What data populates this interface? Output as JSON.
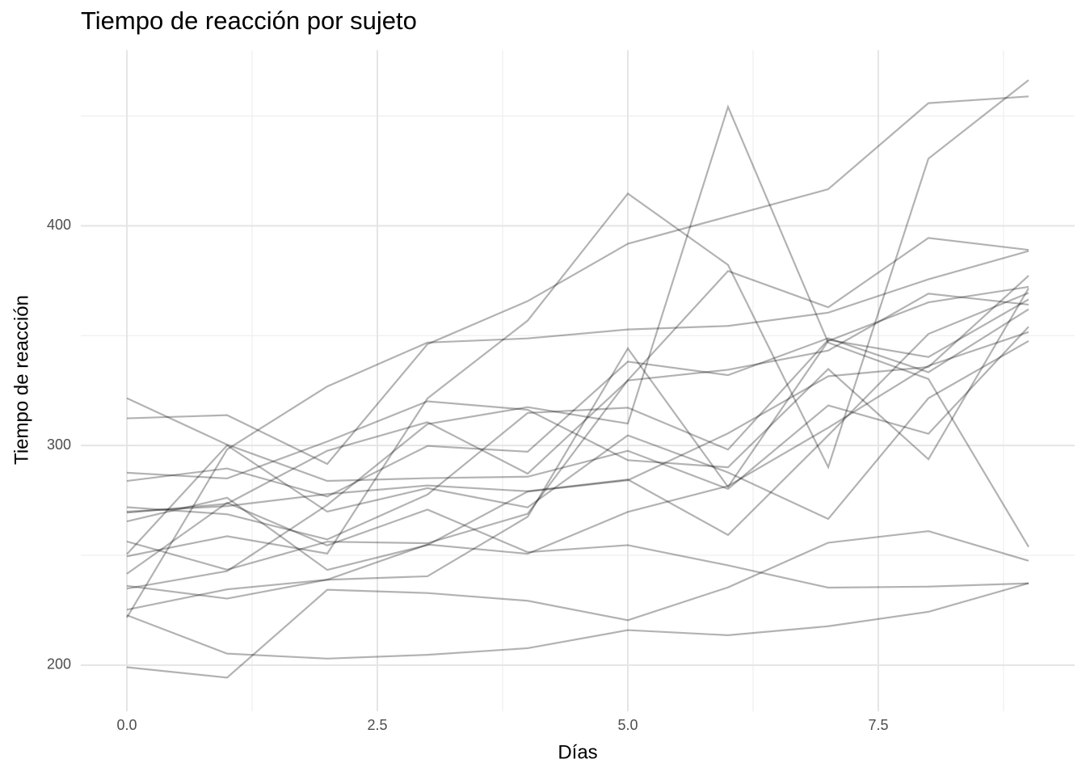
{
  "chart_data": {
    "type": "line",
    "title": "Tiempo de reacción por sujeto",
    "x_label": "Días",
    "y_label": "Tiempo de reacción",
    "x": [
      0,
      1,
      2,
      3,
      4,
      5,
      6,
      7,
      8,
      9
    ],
    "xlim": [
      -0.46,
      9.46
    ],
    "xticks": [
      {
        "value": 0,
        "label": "0.0"
      },
      2.5,
      {
        "value": 5,
        "label": "5.0"
      },
      7.5
    ],
    "ylim": [
      179,
      480
    ],
    "yticks": [
      200,
      300,
      400
    ],
    "grid": true,
    "color": "#000000",
    "opacity": 0.3,
    "series": [
      {
        "values": [
          249.56,
          258.7,
          250.8,
          321.44,
          356.85,
          414.69,
          382.2,
          290.15,
          430.59,
          466.35
        ]
      },
      {
        "values": [
          222.73,
          205.27,
          202.98,
          204.71,
          207.72,
          215.96,
          213.63,
          217.73,
          224.3,
          237.31
        ]
      },
      {
        "values": [
          199.05,
          194.33,
          234.32,
          232.84,
          229.31,
          220.46,
          235.42,
          255.75,
          261.01,
          247.52
        ]
      },
      {
        "values": [
          321.54,
          300.4,
          283.86,
          285.13,
          285.8,
          297.59,
          280.24,
          318.26,
          305.35,
          354.05
        ]
      },
      {
        "values": [
          287.61,
          285.0,
          301.82,
          320.12,
          316.28,
          293.32,
          290.08,
          334.82,
          293.75,
          371.58
        ]
      },
      {
        "values": [
          234.86,
          242.81,
          272.96,
          309.77,
          317.46,
          309.99,
          454.16,
          346.83,
          330.3,
          253.86
        ]
      },
      {
        "values": [
          283.84,
          289.55,
          276.77,
          299.8,
          297.17,
          338.17,
          332.02,
          348.84,
          333.36,
          362.04
        ]
      },
      {
        "values": [
          265.47,
          276.2,
          243.36,
          254.67,
          279.02,
          284.19,
          305.53,
          331.52,
          335.75,
          377.3
        ]
      },
      {
        "values": [
          241.61,
          273.95,
          254.49,
          270.83,
          251.45,
          254.64,
          245.45,
          235.31,
          235.75,
          237.25
        ]
      },
      {
        "values": [
          312.37,
          313.81,
          291.61,
          346.12,
          365.73,
          391.84,
          404.26,
          416.69,
          455.86,
          458.92
        ]
      },
      {
        "values": [
          236.1,
          230.32,
          238.92,
          254.92,
          250.71,
          269.77,
          281.56,
          308.1,
          336.28,
          351.65
        ]
      },
      {
        "values": [
          256.29,
          243.45,
          256.2,
          255.53,
          268.92,
          329.72,
          379.44,
          362.92,
          394.49,
          389.05
        ]
      },
      {
        "values": [
          250.53,
          300.06,
          269.89,
          280.59,
          271.83,
          304.63,
          287.75,
          266.56,
          321.54,
          347.57
        ]
      },
      {
        "values": [
          221.68,
          298.2,
          326.88,
          346.86,
          348.74,
          352.83,
          354.42,
          360.48,
          375.64,
          388.54
        ]
      },
      {
        "values": [
          271.92,
          268.7,
          257.24,
          277.66,
          314.82,
          317.21,
          298.14,
          348.12,
          340.28,
          366.51
        ]
      },
      {
        "values": [
          225.26,
          234.52,
          238.9,
          240.47,
          267.54,
          344.19,
          281.15,
          347.59,
          365.16,
          372.23
        ]
      },
      {
        "values": [
          269.41,
          273.47,
          297.6,
          310.63,
          287.17,
          329.61,
          334.48,
          343.22,
          369.14,
          364.12
        ]
      },
      {
        "values": [
          269.88,
          272.43,
          277.9,
          281.79,
          279.17,
          284.51,
          259.27,
          304.63,
          350.78,
          369.47
        ]
      }
    ]
  }
}
